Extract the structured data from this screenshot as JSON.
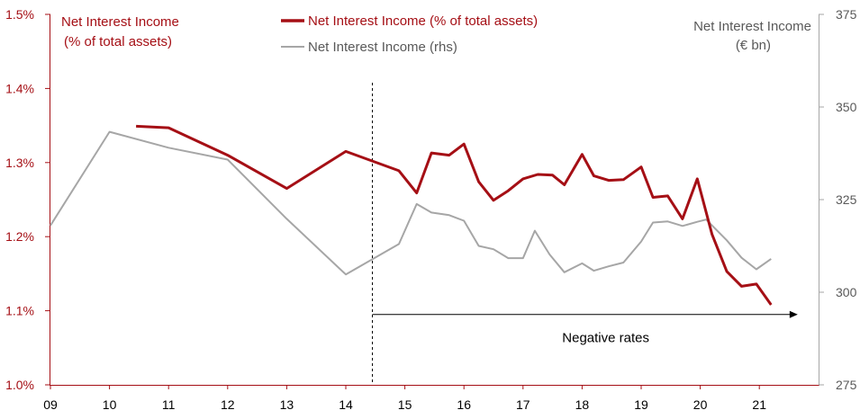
{
  "chart_data": {
    "type": "line",
    "x_ticks": [
      "09",
      "10",
      "11",
      "12",
      "13",
      "14",
      "15",
      "16",
      "17",
      "18",
      "19",
      "20",
      "21"
    ],
    "y_left": {
      "label_lines": [
        "Net Interest Income",
        "(% of total assets)"
      ],
      "min": 1.0,
      "max": 1.5,
      "ticks": [
        "1.0%",
        "1.1%",
        "1.2%",
        "1.3%",
        "1.4%",
        "1.5%"
      ],
      "tick_values": [
        1.0,
        1.1,
        1.2,
        1.3,
        1.4,
        1.5
      ]
    },
    "y_right": {
      "label_lines": [
        "Net Interest Income",
        "(€ bn)"
      ],
      "min": 275,
      "max": 375,
      "ticks": [
        "275",
        "300",
        "325",
        "350",
        "375"
      ],
      "tick_values": [
        275,
        300,
        325,
        350,
        375
      ]
    },
    "legend": {
      "position": "top-center"
    },
    "series": [
      {
        "name": "Net Interest Income (% of total assets)",
        "axis": "left",
        "color": "#a50f15",
        "x": [
          10.45,
          11.0,
          12.0,
          13.0,
          14.0,
          14.9,
          15.2,
          15.45,
          15.75,
          16.0,
          16.25,
          16.5,
          16.75,
          17.0,
          17.25,
          17.5,
          17.7,
          18.0,
          18.2,
          18.45,
          18.7,
          19.0,
          19.2,
          19.45,
          19.7,
          19.95,
          20.2,
          20.45,
          20.7,
          20.95,
          21.2
        ],
        "y": [
          1.349,
          1.347,
          1.31,
          1.265,
          1.315,
          1.289,
          1.259,
          1.313,
          1.31,
          1.325,
          1.274,
          1.249,
          1.262,
          1.278,
          1.284,
          1.283,
          1.27,
          1.311,
          1.282,
          1.276,
          1.277,
          1.294,
          1.253,
          1.255,
          1.224,
          1.278,
          1.203,
          1.153,
          1.133,
          1.136,
          1.108
        ]
      },
      {
        "name": "Net Interest Income (rhs)",
        "axis": "right",
        "color": "#a6a6a6",
        "x": [
          9.0,
          10.0,
          11.0,
          12.0,
          13.0,
          14.0,
          14.9,
          15.2,
          15.45,
          15.75,
          16.0,
          16.25,
          16.5,
          16.75,
          17.0,
          17.2,
          17.45,
          17.7,
          18.0,
          18.2,
          18.45,
          18.7,
          19.0,
          19.2,
          19.45,
          19.7,
          19.95,
          20.1,
          20.45,
          20.7,
          20.95,
          21.2
        ],
        "y": [
          318.0,
          343.3,
          339.0,
          335.8,
          319.8,
          304.8,
          313.0,
          323.8,
          321.5,
          320.8,
          319.3,
          312.5,
          311.6,
          309.2,
          309.2,
          316.6,
          310.2,
          305.4,
          307.8,
          305.8,
          307.0,
          308.0,
          313.7,
          318.8,
          319.1,
          317.9,
          319.0,
          319.6,
          314.0,
          309.3,
          306.2,
          309.0
        ]
      }
    ],
    "annotations": [
      {
        "type": "vline",
        "x": 14.45,
        "style": "dashed",
        "color": "#000000"
      },
      {
        "type": "arrow",
        "x_start": 14.45,
        "x_end": 21.65,
        "y_left": 1.095,
        "color": "#000000"
      },
      {
        "type": "text",
        "text": "Negative rates",
        "x": 18.4,
        "y_left": 1.07
      }
    ]
  }
}
